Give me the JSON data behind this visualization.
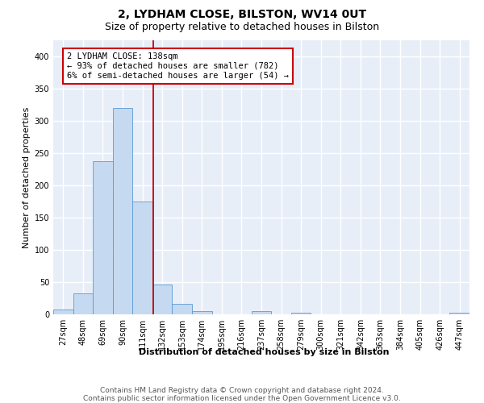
{
  "title": "2, LYDHAM CLOSE, BILSTON, WV14 0UT",
  "subtitle": "Size of property relative to detached houses in Bilston",
  "xlabel": "Distribution of detached houses by size in Bilston",
  "ylabel": "Number of detached properties",
  "bar_color": "#c5d9f0",
  "bar_edge_color": "#5b9bd5",
  "categories": [
    "27sqm",
    "48sqm",
    "69sqm",
    "90sqm",
    "111sqm",
    "132sqm",
    "153sqm",
    "174sqm",
    "195sqm",
    "216sqm",
    "237sqm",
    "258sqm",
    "279sqm",
    "300sqm",
    "321sqm",
    "342sqm",
    "363sqm",
    "384sqm",
    "405sqm",
    "426sqm",
    "447sqm"
  ],
  "values": [
    8,
    32,
    238,
    320,
    175,
    46,
    16,
    5,
    0,
    0,
    5,
    0,
    3,
    0,
    0,
    0,
    0,
    0,
    0,
    0,
    3
  ],
  "ylim": [
    0,
    425
  ],
  "yticks": [
    0,
    50,
    100,
    150,
    200,
    250,
    300,
    350,
    400
  ],
  "property_line_x": 4.55,
  "annotation_line1": "2 LYDHAM CLOSE: 138sqm",
  "annotation_line2": "← 93% of detached houses are smaller (782)",
  "annotation_line3": "6% of semi-detached houses are larger (54) →",
  "annotation_box_facecolor": "#ffffff",
  "annotation_box_edgecolor": "#cc0000",
  "vline_color": "#cc0000",
  "bg_color": "#e8eef8",
  "grid_color": "#ffffff",
  "footer_line1": "Contains HM Land Registry data © Crown copyright and database right 2024.",
  "footer_line2": "Contains public sector information licensed under the Open Government Licence v3.0.",
  "title_fontsize": 10,
  "subtitle_fontsize": 9,
  "ylabel_fontsize": 8,
  "xlabel_fontsize": 8,
  "tick_fontsize": 7,
  "annotation_fontsize": 7.5,
  "footer_fontsize": 6.5
}
